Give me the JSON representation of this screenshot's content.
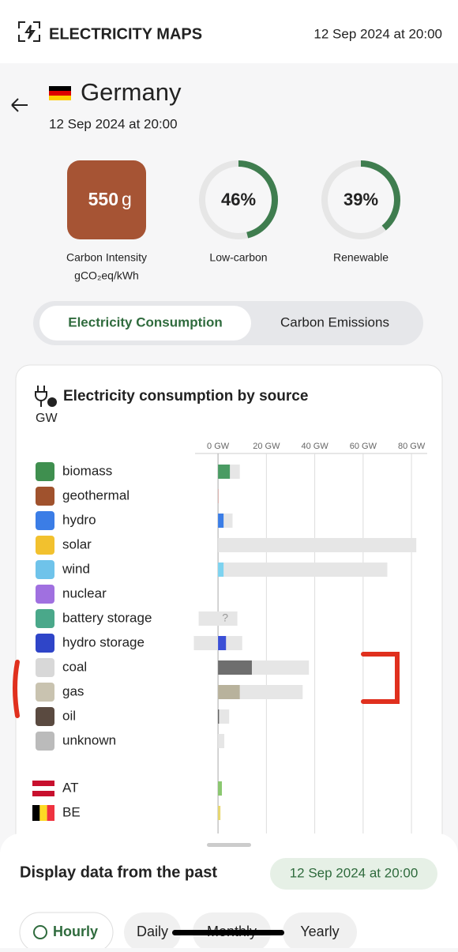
{
  "header": {
    "brand": "ELECTRICITY MAPS",
    "datetime": "12 Sep 2024 at 20:00"
  },
  "zone": {
    "name": "Germany",
    "datetime": "12 Sep 2024 at 20:00"
  },
  "metrics": {
    "carbon_intensity": {
      "value": 550,
      "unit": "g",
      "label": "Carbon Intensity",
      "unit_label": "gCO₂eq/kWh",
      "color": "#a65434"
    },
    "low_carbon": {
      "value": 46,
      "label": "46%",
      "name": "Low-carbon"
    },
    "renewable": {
      "value": 39,
      "label": "39%",
      "name": "Renewable"
    }
  },
  "tabs": [
    "Electricity Consumption",
    "Carbon Emissions"
  ],
  "chart": {
    "type": "bar",
    "title": "Electricity consumption by source",
    "unit": "GW",
    "xlim": [
      -9.5,
      86.5
    ],
    "xticks": [
      {
        "value": 0,
        "label": "0 GW"
      },
      {
        "value": 20,
        "label": "20 GW"
      },
      {
        "value": 40,
        "label": "40 GW"
      },
      {
        "value": 60,
        "label": "60 GW"
      },
      {
        "value": 80,
        "label": "80 GW"
      }
    ],
    "categories": [
      "biomass",
      "geothermal",
      "hydro",
      "solar",
      "wind",
      "nuclear",
      "battery storage",
      "hydro storage",
      "coal",
      "gas",
      "oil",
      "unknown"
    ],
    "values": [
      4.9,
      0.1,
      2.3,
      0,
      2.3,
      0,
      null,
      3.3,
      14,
      9,
      0.4,
      0
    ],
    "value_labels": [
      null,
      null,
      null,
      null,
      null,
      null,
      "?",
      null,
      null,
      null,
      null,
      null
    ],
    "capacity_min": [
      0,
      0,
      0,
      0,
      0,
      0,
      -8,
      -10,
      0,
      0,
      0,
      0
    ],
    "capacity_max": [
      9,
      0.2,
      6,
      82,
      70,
      0,
      8,
      10,
      37.6,
      35,
      4.6,
      2.6
    ],
    "colors": [
      "#4a9b63",
      "#c0392b",
      "#3b7de6",
      "#f2c12e",
      "#7dd3f0",
      "#a070e0",
      "#4aa88a",
      "#3b4fd6",
      "#6e6e6e",
      "#b8b29c",
      "#555555",
      "#aaaaaa"
    ],
    "exchanges": {
      "categories": [
        "AT",
        "BE"
      ],
      "values": [
        1.6,
        1.0
      ],
      "colors": [
        "#8bc870",
        "#e8d870"
      ]
    }
  },
  "sheet": {
    "title": "Display data from the past",
    "datetime": "12 Sep 2024 at 20:00",
    "options": [
      "Hourly",
      "Daily",
      "Monthly",
      "Yearly"
    ]
  }
}
